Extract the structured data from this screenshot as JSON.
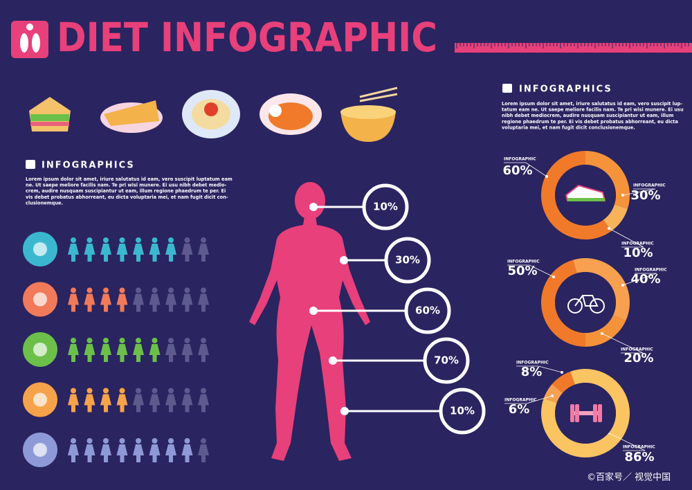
{
  "header": {
    "title": "DIET INFOGRAPHIC"
  },
  "left_panel": {
    "heading": "INFOGRAPHICS",
    "text": [
      "Lorem ipsum dolor sit amet, iriure salutatus id eam, vero suscipit luptatum eam",
      "ne. Ut saepe meliore facilis nam. Te pri wisi munere. Ei usu nibh debet medio-",
      "crem, audire nusquam suscipiantur ut eam, illum regione phaedrum te per. Ei",
      "vis debet probatus abhorreant, eu dicta voluptaria mei, et nam fugit dicit con-",
      "clusionemque."
    ]
  },
  "right_panel": {
    "heading": "INFOGRAPHICS",
    "text": [
      "Lorem ipsum dolor sit amet, iriure salutatus id eam, vero suscipit lup-",
      "tatum eam ne. Ut saepe meliore facilis nam. Te pri wisi munere. Ei usu",
      "nibh debet mediocrem, audire nusquam suscipiantur ut eam, illum",
      "regione phaedrum te per. Ei vis debet probatus abhorreant, eu dicta",
      "voluptaria mei, et nam fugit dicit conclusionemque."
    ]
  },
  "body_callouts": [
    "10%",
    "30%",
    "60%",
    "70%",
    "10%"
  ],
  "pictogram_rows": [
    {
      "highlighted": 7,
      "total": 9,
      "color": "#3bb8d0"
    },
    {
      "highlighted": 4,
      "total": 9,
      "color": "#f07a5a"
    },
    {
      "highlighted": 6,
      "total": 9,
      "color": "#6cc04a"
    },
    {
      "highlighted": 4,
      "total": 9,
      "color": "#f6a24b"
    },
    {
      "highlighted": 8,
      "total": 9,
      "color": "#8e9ad8"
    }
  ],
  "donuts": [
    {
      "segments": [
        {
          "value": 60,
          "label": "60%",
          "caption": "INFOGRAPHIC",
          "color": "#f07a2a"
        },
        {
          "value": 30,
          "label": "30%",
          "caption": "INFOGRAPHIC",
          "color": "#f5933a"
        },
        {
          "value": 10,
          "label": "10%",
          "caption": "INFOGRAPHIC",
          "color": "#f8b25a"
        }
      ]
    },
    {
      "segments": [
        {
          "value": 50,
          "label": "50%",
          "caption": "INFOGRAPHIC",
          "color": "#f07a2a"
        },
        {
          "value": 40,
          "label": "40%",
          "caption": "INFOGRAPHIC",
          "color": "#f7a050"
        },
        {
          "value": 20,
          "label": "20%",
          "caption": "INFOGRAPHIC",
          "color": "#f5933a"
        }
      ]
    },
    {
      "segments": [
        {
          "value": 8,
          "label": "8%",
          "caption": "INFOGRAPHIC",
          "color": "#f07a2a"
        },
        {
          "value": 6,
          "label": "6%",
          "caption": "INFOGRAPHIC",
          "color": "#f7a050"
        },
        {
          "value": 86,
          "label": "86%",
          "caption": "INFOGRAPHIC",
          "color": "#fbc463"
        }
      ]
    }
  ],
  "watermark": "©百家号／ 视觉中国"
}
